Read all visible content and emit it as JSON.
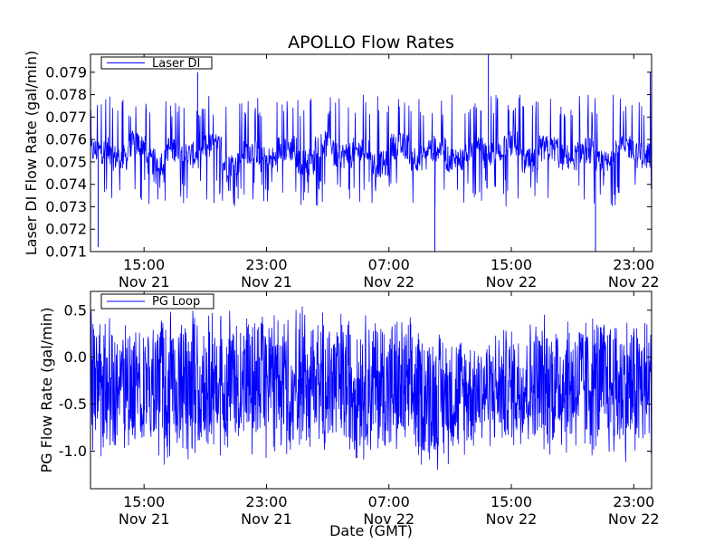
{
  "figure": {
    "title": "APOLLO Flow Rates",
    "background": "#ffffff",
    "series_color": "#0000ff"
  },
  "chart_data": [
    {
      "type": "line",
      "title": "APOLLO Flow Rates",
      "xlabel": "",
      "ylabel": "Laser DI Flow Rate (gal/min)",
      "x_range": [
        "2012-11-21 11:30",
        "2012-11-23 00:10"
      ],
      "ylim": [
        0.071,
        0.0798
      ],
      "y_ticks": [
        "0.071",
        "0.072",
        "0.073",
        "0.074",
        "0.075",
        "0.076",
        "0.077",
        "0.078",
        "0.079"
      ],
      "x_ticks": [
        {
          "time": "15:00",
          "date": "Nov 21"
        },
        {
          "time": "23:00",
          "date": "Nov 21"
        },
        {
          "time": "07:00",
          "date": "Nov 22"
        },
        {
          "time": "15:00",
          "date": "Nov 22"
        },
        {
          "time": "23:00",
          "date": "Nov 22"
        }
      ],
      "grid": false,
      "legend": "top-left",
      "series": [
        {
          "name": "Laser DI",
          "color": "#0000ff",
          "values": [
            0.0755,
            0.0752,
            0.0758,
            0.075,
            0.0756,
            0.0753,
            0.0757,
            0.0749,
            0.0755,
            0.0751,
            0.0756,
            0.075,
            0.0758,
            0.0753,
            0.0755,
            0.0749,
            0.0757,
            0.0752,
            0.0756,
            0.0751,
            0.0755,
            0.0753,
            0.0758,
            0.075,
            0.0756,
            0.0752,
            0.0755,
            0.0749,
            0.0757,
            0.0753
          ],
          "spikes": [
            {
              "x": "2012-11-21 12:00",
              "y": 0.0712
            },
            {
              "x": "2012-11-21 18:30",
              "y": 0.079
            },
            {
              "x": "2012-11-22 10:00",
              "y": 0.071
            },
            {
              "x": "2012-11-22 13:30",
              "y": 0.0798
            },
            {
              "x": "2012-11-22 20:30",
              "y": 0.071
            },
            {
              "x": "2012-11-23 00:05",
              "y": 0.079
            }
          ],
          "typical_range": [
            0.073,
            0.078
          ]
        }
      ]
    },
    {
      "type": "line",
      "title": "",
      "xlabel": "Date (GMT)",
      "ylabel": "PG Flow Rate (gal/min)",
      "x_range": [
        "2012-11-21 11:30",
        "2012-11-23 00:10"
      ],
      "ylim": [
        -1.4,
        0.7
      ],
      "y_ticks": [
        "-1.0",
        "-0.5",
        "0.0",
        "0.5"
      ],
      "x_ticks": [
        {
          "time": "15:00",
          "date": "Nov 21"
        },
        {
          "time": "23:00",
          "date": "Nov 21"
        },
        {
          "time": "07:00",
          "date": "Nov 22"
        },
        {
          "time": "15:00",
          "date": "Nov 22"
        },
        {
          "time": "23:00",
          "date": "Nov 22"
        }
      ],
      "grid": false,
      "legend": "top-left",
      "series": [
        {
          "name": "PG Loop",
          "color": "#0000ff",
          "envelope_x": [
            "2012-11-21 11:30",
            "2012-11-21 16:00",
            "2012-11-21 23:00",
            "2012-11-22 06:00",
            "2012-11-22 10:00",
            "2012-11-22 13:00",
            "2012-11-22 18:00",
            "2012-11-23 00:10"
          ],
          "upper": [
            0.55,
            0.55,
            0.58,
            0.58,
            0.4,
            0.3,
            0.58,
            0.55
          ],
          "lower": [
            -1.15,
            -1.15,
            -1.15,
            -1.15,
            -1.25,
            -1.0,
            -1.12,
            -1.2
          ]
        }
      ]
    }
  ]
}
